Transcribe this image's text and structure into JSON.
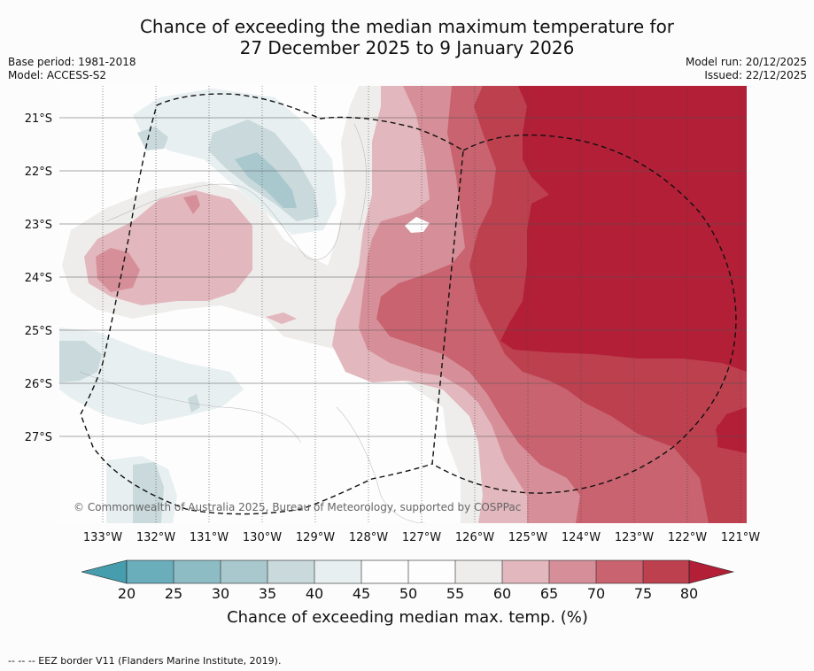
{
  "title": {
    "line1": "Chance of exceeding the median maximum temperature for",
    "line2": "27 December 2025 to 9 January 2026"
  },
  "meta": {
    "base_period": "Base period: 1981-2018",
    "model": "Model: ACCESS-S2",
    "model_run": "Model run: 20/12/2025",
    "issued": "Issued: 22/12/2025"
  },
  "map": {
    "copyright": "© Commonwealth of Australia 2025, Bureau of Meteorology, supported by COSPPac",
    "lat_labels": [
      "21°S",
      "22°S",
      "23°S",
      "24°S",
      "25°S",
      "26°S",
      "27°S"
    ],
    "lon_labels": [
      "133°W",
      "132°W",
      "131°W",
      "130°W",
      "129°W",
      "128°W",
      "127°W",
      "126°W",
      "125°W",
      "124°W",
      "123°W",
      "122°W",
      "121°W"
    ],
    "colors": {
      "p20_25": "#6aaebc",
      "p25_30": "#8ebcc5",
      "p30_35": "#a9c8ce",
      "p35_40": "#c9d9dc",
      "p40_45": "#e8eff0",
      "p45_55": "#fdfdfd",
      "p50_55": "#fdfdfd",
      "p55_60": "#eeedeb",
      "p60_65": "#e2b7bd",
      "p65_70": "#d68f99",
      "p70_75": "#c8636f",
      "p75_80": "#bd404f",
      "p80_plus": "#b21f37",
      "p_below20": "#459dae"
    }
  },
  "colorbar": {
    "ticks": [
      "20",
      "25",
      "30",
      "35",
      "40",
      "45",
      "50",
      "55",
      "60",
      "65",
      "70",
      "75",
      "80"
    ],
    "label": "Chance of exceeding median max. temp. (%)"
  },
  "footer": {
    "legend_text": "--  --  -- EEZ border V11 (Flanders Marine Institute, 2019)."
  }
}
